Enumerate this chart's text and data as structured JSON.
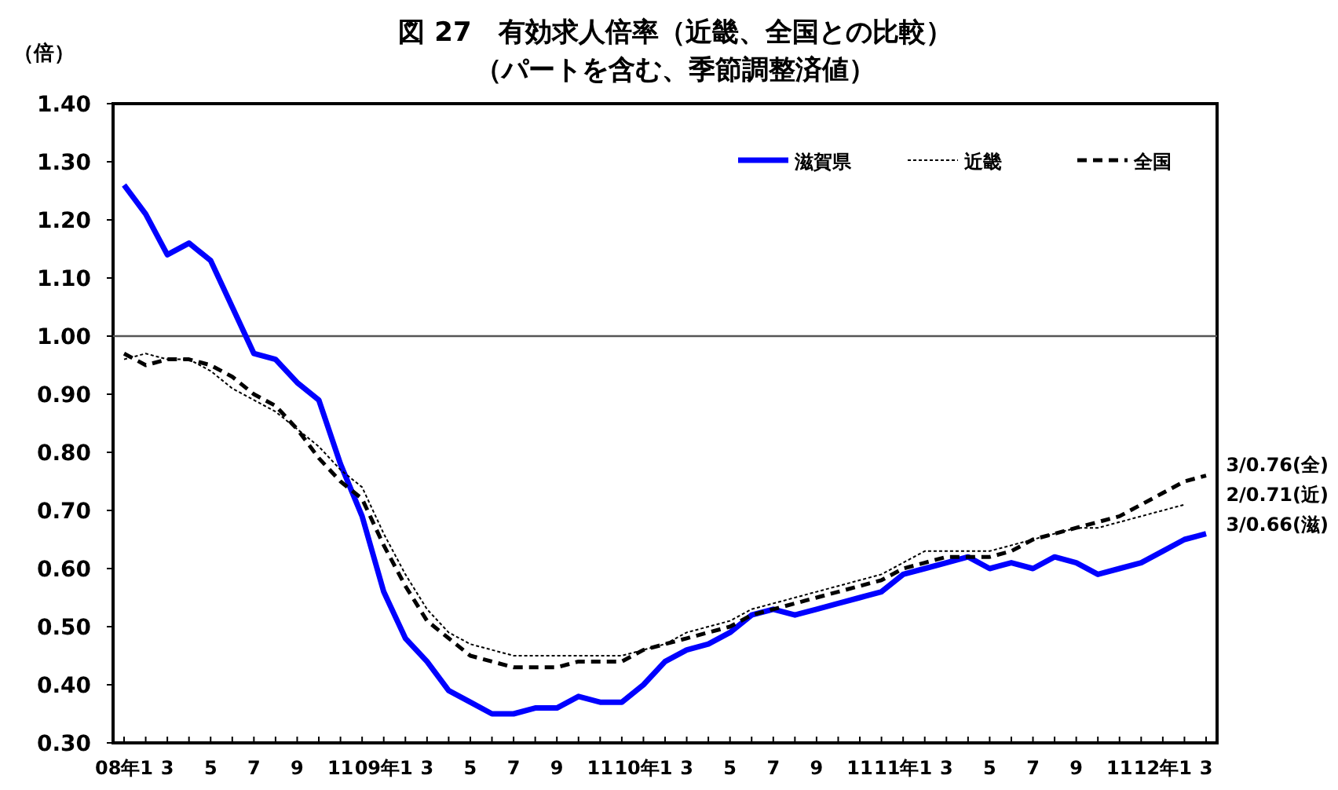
{
  "chart_data": {
    "type": "line",
    "title": "図 27　有効求人倍率（近畿、全国との比較）",
    "subtitle": "（パートを含む、季節調整済値）",
    "ylabel": "（倍）",
    "categories": [
      "08年1",
      null,
      "3",
      null,
      "5",
      null,
      "7",
      null,
      "9",
      null,
      "11",
      null,
      "09年1",
      null,
      "3",
      null,
      "5",
      null,
      "7",
      null,
      "9",
      null,
      "11",
      null,
      "10年1",
      null,
      "3",
      null,
      "5",
      null,
      "7",
      null,
      "9",
      null,
      "11",
      null,
      "11年1",
      null,
      "3",
      null,
      "5",
      null,
      "7",
      null,
      "9",
      null,
      "11",
      null,
      "12年1",
      null,
      "3"
    ],
    "series": [
      {
        "name": "滋賀県",
        "color": "#0000ff",
        "line_style": "solid",
        "values": [
          1.26,
          1.21,
          1.14,
          1.16,
          1.13,
          1.05,
          0.97,
          0.96,
          0.92,
          0.89,
          0.78,
          0.69,
          0.56,
          0.48,
          0.44,
          0.39,
          0.37,
          0.35,
          0.35,
          0.36,
          0.36,
          0.38,
          0.37,
          0.37,
          0.4,
          0.44,
          0.46,
          0.47,
          0.49,
          0.52,
          0.53,
          0.52,
          0.53,
          0.54,
          0.55,
          0.56,
          0.59,
          0.6,
          0.61,
          0.62,
          0.6,
          0.61,
          0.6,
          0.62,
          0.61,
          0.59,
          0.6,
          0.61,
          0.63,
          0.65,
          0.66
        ]
      },
      {
        "name": "近畿",
        "color": "#000000",
        "line_style": "dotted",
        "values": [
          0.96,
          0.97,
          0.96,
          0.96,
          0.94,
          0.91,
          0.89,
          0.87,
          0.84,
          0.81,
          0.77,
          0.74,
          0.66,
          0.59,
          0.53,
          0.49,
          0.47,
          0.46,
          0.45,
          0.45,
          0.45,
          0.45,
          0.45,
          0.45,
          0.46,
          0.47,
          0.49,
          0.5,
          0.51,
          0.53,
          0.54,
          0.55,
          0.56,
          0.57,
          0.58,
          0.59,
          0.61,
          0.63,
          0.63,
          0.63,
          0.63,
          0.64,
          0.65,
          0.66,
          0.67,
          0.67,
          0.68,
          0.69,
          0.7,
          0.71,
          null
        ]
      },
      {
        "name": "全国",
        "color": "#000000",
        "line_style": "dashed",
        "values": [
          0.97,
          0.95,
          0.96,
          0.96,
          0.95,
          0.93,
          0.9,
          0.88,
          0.84,
          0.79,
          0.75,
          0.72,
          0.64,
          0.57,
          0.51,
          0.48,
          0.45,
          0.44,
          0.43,
          0.43,
          0.43,
          0.44,
          0.44,
          0.44,
          0.46,
          0.47,
          0.48,
          0.49,
          0.5,
          0.52,
          0.53,
          0.54,
          0.55,
          0.56,
          0.57,
          0.58,
          0.6,
          0.61,
          0.62,
          0.62,
          0.62,
          0.63,
          0.65,
          0.66,
          0.67,
          0.68,
          0.69,
          0.71,
          0.73,
          0.75,
          0.76
        ]
      }
    ],
    "ylim": [
      0.3,
      1.4
    ],
    "yticks": [
      {
        "value": 0.3,
        "label": "0.30"
      },
      {
        "value": 0.4,
        "label": "0.40"
      },
      {
        "value": 0.5,
        "label": "0.50"
      },
      {
        "value": 0.6,
        "label": "0.60"
      },
      {
        "value": 0.7,
        "label": "0.70"
      },
      {
        "value": 0.8,
        "label": "0.80"
      },
      {
        "value": 0.9,
        "label": "0.90"
      },
      {
        "value": 1.0,
        "label": "1.00"
      },
      {
        "value": 1.1,
        "label": "1.10"
      },
      {
        "value": 1.2,
        "label": "1.20"
      },
      {
        "value": 1.3,
        "label": "1.30"
      },
      {
        "value": 1.4,
        "label": "1.40"
      }
    ],
    "ref_lines": [
      {
        "axis": "y",
        "value": 1.0,
        "color": "#555555"
      }
    ],
    "annotations": [
      "3/0.76(全)",
      "2/0.71(近)",
      "3/0.66(滋)"
    ],
    "legend": "top",
    "grid": false
  }
}
